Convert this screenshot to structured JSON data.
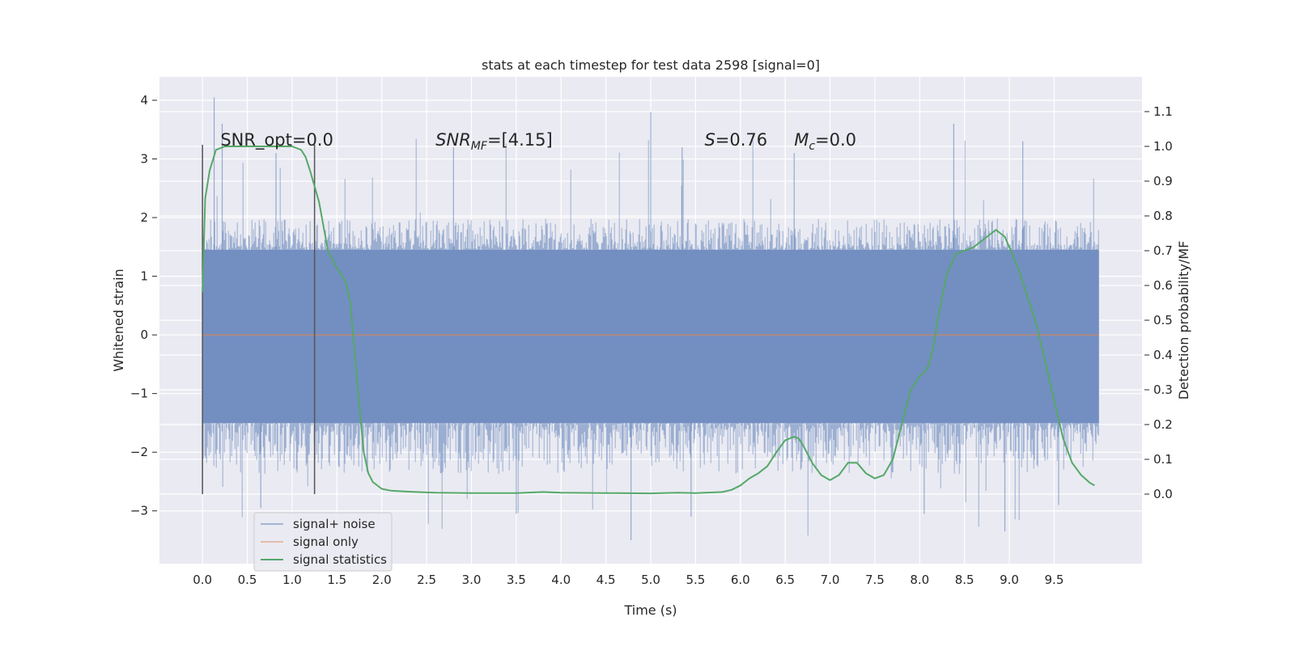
{
  "chart_data": {
    "type": "line",
    "title": "stats at each timestep for test data 2598 [signal=0]",
    "xlabel": "Time (s)",
    "ylabel": "Whitened strain",
    "y2label": "Detection probability/MF",
    "xlim": [
      -0.48,
      10.48
    ],
    "ylim": [
      -3.9,
      4.4
    ],
    "y2lim": [
      -0.2,
      1.2
    ],
    "x_ticks": [
      "0.0",
      "0.5",
      "1.0",
      "1.5",
      "2.0",
      "2.5",
      "3.0",
      "3.5",
      "4.0",
      "4.5",
      "5.0",
      "5.5",
      "6.0",
      "6.5",
      "7.0",
      "7.5",
      "8.0",
      "8.5",
      "9.0",
      "9.5"
    ],
    "y_ticks": [
      "−3",
      "−2",
      "−1",
      "0",
      "1",
      "2",
      "3",
      "4"
    ],
    "y2_ticks": [
      "0.0",
      "0.1",
      "0.2",
      "0.3",
      "0.4",
      "0.5",
      "0.6",
      "0.7",
      "0.8",
      "0.9",
      "1.0",
      "1.1"
    ],
    "grid": true,
    "background": "#eaeaf2",
    "legend": {
      "position": "lower-left",
      "entries": [
        {
          "label": "signal+ noise",
          "color": "#4c72b0"
        },
        {
          "label": "signal only",
          "color": "#dd8452"
        },
        {
          "label": "signal statistics",
          "color": "#55a868"
        }
      ]
    },
    "annotations": {
      "snr_opt": "SNR_opt=0.0",
      "snr_mf_base": "SNR",
      "snr_mf_sub": "MF",
      "snr_mf_value": "=[4.15]",
      "s_symbol": "S",
      "s_value": "=0.76",
      "mc_symbol": "M",
      "mc_sub": "c",
      "mc_value": "=0.0"
    },
    "vertical_markers": [
      0.0,
      1.25
    ],
    "noise_series": {
      "name": "signal+ noise",
      "x_range": [
        0.0,
        10.0
      ],
      "band": [
        -1.5,
        1.45
      ],
      "typical_max": 2.0,
      "typical_min": -2.4,
      "max": 4.05,
      "min": -3.5
    },
    "signal_only": {
      "name": "signal only",
      "x": [
        0.0,
        10.0
      ],
      "y": [
        0.0,
        0.0
      ]
    },
    "statistics_series": {
      "name": "signal statistics",
      "x": [
        0.0,
        0.03,
        0.08,
        0.15,
        0.25,
        0.4,
        0.6,
        0.8,
        1.0,
        1.1,
        1.15,
        1.2,
        1.3,
        1.4,
        1.5,
        1.6,
        1.65,
        1.7,
        1.75,
        1.8,
        1.85,
        1.9,
        2.0,
        2.1,
        2.3,
        2.6,
        3.0,
        3.5,
        3.8,
        4.0,
        4.5,
        5.0,
        5.3,
        5.5,
        5.8,
        5.9,
        6.0,
        6.1,
        6.2,
        6.3,
        6.4,
        6.5,
        6.6,
        6.65,
        6.7,
        6.75,
        6.8,
        6.9,
        7.0,
        7.1,
        7.2,
        7.3,
        7.4,
        7.5,
        7.6,
        7.7,
        7.8,
        7.9,
        8.0,
        8.05,
        8.1,
        8.15,
        8.2,
        8.3,
        8.4,
        8.5,
        8.6,
        8.7,
        8.8,
        8.85,
        8.9,
        8.95,
        9.0,
        9.1,
        9.2,
        9.3,
        9.4,
        9.5,
        9.6,
        9.7,
        9.8,
        9.9,
        9.95
      ],
      "y": [
        0.58,
        0.85,
        0.93,
        0.99,
        1.0,
        1.0,
        1.0,
        1.0,
        1.0,
        0.99,
        0.97,
        0.93,
        0.84,
        0.7,
        0.65,
        0.61,
        0.55,
        0.4,
        0.25,
        0.12,
        0.06,
        0.035,
        0.015,
        0.01,
        0.007,
        0.004,
        0.003,
        0.003,
        0.006,
        0.004,
        0.003,
        0.002,
        0.004,
        0.003,
        0.006,
        0.012,
        0.025,
        0.045,
        0.06,
        0.08,
        0.12,
        0.155,
        0.165,
        0.16,
        0.14,
        0.115,
        0.09,
        0.055,
        0.04,
        0.055,
        0.09,
        0.09,
        0.06,
        0.045,
        0.055,
        0.1,
        0.2,
        0.3,
        0.34,
        0.35,
        0.37,
        0.42,
        0.5,
        0.63,
        0.69,
        0.7,
        0.71,
        0.73,
        0.75,
        0.76,
        0.75,
        0.74,
        0.71,
        0.65,
        0.57,
        0.49,
        0.38,
        0.27,
        0.16,
        0.09,
        0.055,
        0.032,
        0.025
      ]
    }
  }
}
